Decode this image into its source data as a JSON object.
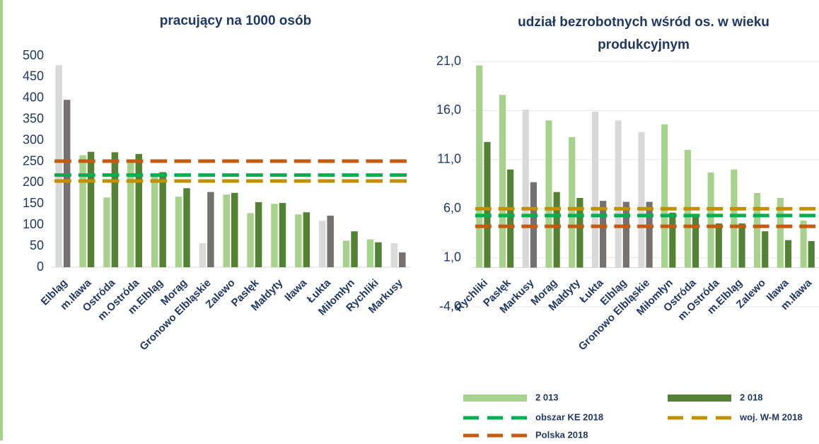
{
  "chart_data": [
    {
      "type": "bar",
      "title": "pracujący na 1000 osób",
      "categories": [
        "Elbląg",
        "m.Iława",
        "Ostróda",
        "m.Ostróda",
        "m.Elbląg",
        "Morąg",
        "Gronowo Elbląskie",
        "Zalewo",
        "Pasłęk",
        "Małdyty",
        "Iława",
        "Łukta",
        "Miłomłyn",
        "Rychliki",
        "Markusy"
      ],
      "series": [
        {
          "values": [
            478,
            265,
            165,
            250,
            220,
            167,
            57,
            172,
            128,
            150,
            125,
            110,
            63,
            66,
            57
          ],
          "colors": [
            "#d9d9d9",
            "#a9d18e",
            "#a9d18e",
            "#a9d18e",
            "#a9d18e",
            "#a9d18e",
            "#d9d9d9",
            "#a9d18e",
            "#a9d18e",
            "#a9d18e",
            "#a9d18e",
            "#d9d9d9",
            "#a9d18e",
            "#a9d18e",
            "#d9d9d9"
          ]
        },
        {
          "values": [
            396,
            273,
            272,
            268,
            225,
            187,
            178,
            176,
            154,
            152,
            130,
            122,
            85,
            59,
            35
          ],
          "colors": [
            "#767171",
            "#548235",
            "#548235",
            "#548235",
            "#548235",
            "#548235",
            "#767171",
            "#548235",
            "#548235",
            "#548235",
            "#548235",
            "#767171",
            "#548235",
            "#548235",
            "#767171"
          ]
        }
      ],
      "reference_lines": [
        {
          "value": 218,
          "color": "#00b050"
        },
        {
          "value": 204,
          "color": "#bf9000"
        },
        {
          "value": 251,
          "color": "#c55a11"
        }
      ],
      "ylim": [
        0,
        500
      ],
      "yticks": [
        0,
        50,
        100,
        150,
        200,
        250,
        300,
        350,
        400,
        450,
        500
      ],
      "grid": false
    },
    {
      "type": "bar",
      "title": [
        "udział bezrobotnych wśród os. w wieku",
        "produkcyjnym"
      ],
      "categories": [
        "Rychliki",
        "Pasłęk",
        "Markusy",
        "Morąg",
        "Małdyty",
        "Łukta",
        "Elbląg",
        "Gronowo Elbląskie",
        "Miłomłyn",
        "Ostróda",
        "m.Ostróda",
        "m.Elbląg",
        "Zalewo",
        "Iława",
        "m.Iława"
      ],
      "series": [
        {
          "name": "2 013",
          "color": "#a9d18e",
          "values": [
            20.6,
            17.6,
            16.1,
            15.0,
            13.3,
            15.9,
            15.0,
            13.8,
            14.6,
            12.0,
            9.7,
            10.0,
            7.6,
            7.1,
            4.8
          ],
          "colors": [
            "#a9d18e",
            "#a9d18e",
            "#d9d9d9",
            "#a9d18e",
            "#a9d18e",
            "#d9d9d9",
            "#d9d9d9",
            "#d9d9d9",
            "#a9d18e",
            "#a9d18e",
            "#a9d18e",
            "#a9d18e",
            "#a9d18e",
            "#a9d18e",
            "#a9d18e"
          ]
        },
        {
          "name": "2 018",
          "color": "#548235",
          "values": [
            12.8,
            10.0,
            8.7,
            7.7,
            7.1,
            6.8,
            6.7,
            6.7,
            5.6,
            5.2,
            4.5,
            4.5,
            3.7,
            2.8,
            2.7
          ],
          "colors": [
            "#548235",
            "#548235",
            "#767171",
            "#548235",
            "#548235",
            "#767171",
            "#767171",
            "#767171",
            "#548235",
            "#548235",
            "#548235",
            "#548235",
            "#548235",
            "#548235",
            "#548235"
          ]
        }
      ],
      "reference_lines": [
        {
          "name": "obszar KE 2018",
          "value": 5.3,
          "color": "#00b050"
        },
        {
          "name": "woj. W-M 2018",
          "value": 6.0,
          "color": "#bf9000"
        },
        {
          "name": "Polska 2018",
          "value": 4.2,
          "color": "#c55a11"
        }
      ],
      "ylim": [
        -4,
        21
      ],
      "yticks": [
        {
          "value": -4,
          "label": "-4,0"
        },
        {
          "value": 1,
          "label": "1,0"
        },
        {
          "value": 6,
          "label": "6,0"
        },
        {
          "value": 11,
          "label": "11,0"
        },
        {
          "value": 16,
          "label": "16,0"
        },
        {
          "value": 21,
          "label": "21,0"
        }
      ],
      "grid": true
    }
  ]
}
